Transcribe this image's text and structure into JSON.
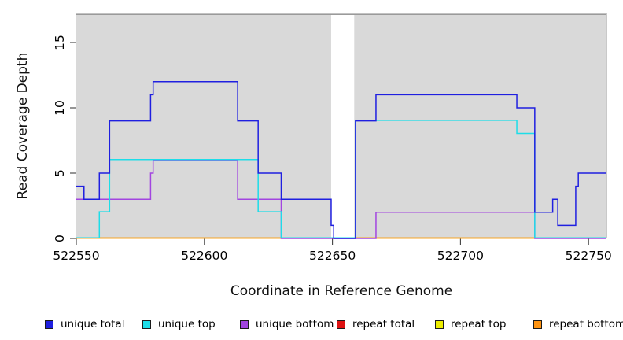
{
  "figure": {
    "x_axis_title": "Coordinate in Reference Genome",
    "y_axis_title": "Read Coverage Depth"
  },
  "chart_data": {
    "type": "line",
    "subtype": "step",
    "title": "",
    "xlabel": "Coordinate in Reference Genome",
    "ylabel": "Read Coverage Depth",
    "xlim": [
      522550,
      522757
    ],
    "ylim": [
      0,
      17.2
    ],
    "x_ticks": [
      522550,
      522600,
      522650,
      522700,
      522750
    ],
    "y_ticks": [
      0,
      5,
      10,
      15
    ],
    "grid": false,
    "plot_bg_color": "#d9d9d9",
    "masked_region": {
      "x_start": 522649.5,
      "x_end": 522658.5,
      "color": "#ffffff"
    },
    "legend_position": "bottom",
    "series": [
      {
        "name": "unique total",
        "color": "#1f1fe0",
        "steps": [
          [
            522550,
            4
          ],
          [
            522553,
            3
          ],
          [
            522559,
            5
          ],
          [
            522563,
            9
          ],
          [
            522579,
            11
          ],
          [
            522580,
            12
          ],
          [
            522613,
            9
          ],
          [
            522621,
            5
          ],
          [
            522630,
            3
          ],
          [
            522649.5,
            1
          ],
          [
            522650.5,
            0
          ],
          [
            522659,
            9
          ],
          [
            522667,
            11
          ],
          [
            522722,
            10
          ],
          [
            522729,
            2
          ],
          [
            522736,
            3
          ],
          [
            522738,
            1
          ],
          [
            522745,
            4
          ],
          [
            522746,
            5
          ]
        ]
      },
      {
        "name": "unique top",
        "color": "#1ddde8",
        "steps": [
          [
            522550,
            0
          ],
          [
            522559,
            2
          ],
          [
            522563,
            6
          ],
          [
            522621,
            2
          ],
          [
            522630,
            0
          ],
          [
            522659,
            9
          ],
          [
            522722,
            8
          ],
          [
            522729,
            0
          ]
        ]
      },
      {
        "name": "unique bottom",
        "color": "#a245e0",
        "steps": [
          [
            522550,
            3
          ],
          [
            522579,
            5
          ],
          [
            522580,
            6
          ],
          [
            522613,
            3
          ],
          [
            522630,
            0
          ],
          [
            522667,
            2
          ],
          [
            522729,
            0
          ]
        ]
      },
      {
        "name": "repeat total",
        "color": "#dd1111",
        "steps": [
          [
            522550,
            0
          ]
        ]
      },
      {
        "name": "repeat top",
        "color": "#eded00",
        "steps": [
          [
            522550,
            0
          ]
        ]
      },
      {
        "name": "repeat bottom",
        "color": "#ff9412",
        "steps": [
          [
            522550,
            0
          ]
        ]
      }
    ]
  }
}
